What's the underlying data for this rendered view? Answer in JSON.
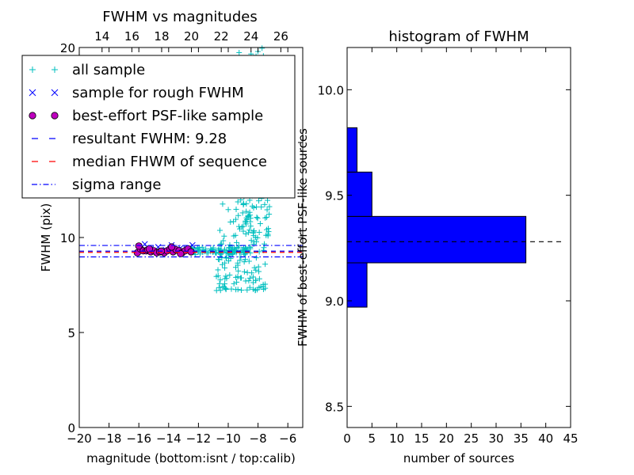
{
  "chart_data": [
    {
      "type": "scatter",
      "title": "FWHM vs magnitudes",
      "xlabel": "magnitude (bottom:isnt / top:calib)",
      "ylabel": "FWHM (pix)",
      "xlim": [
        -20,
        -5
      ],
      "ylim": [
        0,
        20
      ],
      "x_ticks": [
        "−20",
        "−18",
        "−16",
        "−14",
        "−12",
        "−10",
        "−8",
        "−6"
      ],
      "y_ticks": [
        "0",
        "5",
        "10",
        "15",
        "20"
      ],
      "top_axis": {
        "xlim": [
          12.47,
          27.47
        ],
        "ticks": [
          "14",
          "16",
          "18",
          "20",
          "22",
          "24",
          "26"
        ]
      },
      "legend_position": "upper-left",
      "legend": [
        {
          "label": "all sample",
          "marker": "+",
          "color": "#00bfbf"
        },
        {
          "label": "sample for rough FWHM",
          "marker": "x",
          "color": "#0000ff"
        },
        {
          "label": "best-effort PSF-like sample",
          "marker": "o",
          "color": "#bf00bf"
        },
        {
          "label": "resultant FWHM: 9.28",
          "linestyle": "dashed",
          "color": "#0000ff"
        },
        {
          "label": "median FHWM of sequence",
          "linestyle": "dashed",
          "color": "#ff0000"
        },
        {
          "label": "sigma range",
          "linestyle": "dashdot",
          "color": "#0000ff"
        }
      ],
      "hlines": {
        "resultant": 9.28,
        "median": 9.22,
        "sigma_low": 8.98,
        "sigma_high": 9.58
      },
      "series": [
        {
          "name": "best-effort PSF-like sample",
          "x": [
            -16.1,
            -15.9,
            -15.7,
            -15.5,
            -15.4,
            -15.2,
            -15.0,
            -14.8,
            -14.6,
            -14.3,
            -14.1,
            -13.9,
            -13.7,
            -13.5,
            -13.3,
            -13.1,
            -12.9,
            -12.7,
            -12.5,
            -16.0,
            -15.3,
            -14.5,
            -13.8,
            -13.2
          ],
          "y": [
            9.2,
            9.4,
            9.3,
            9.3,
            9.35,
            9.25,
            9.3,
            9.2,
            9.25,
            9.2,
            9.3,
            9.4,
            9.25,
            9.35,
            9.3,
            9.2,
            9.3,
            9.4,
            9.25,
            9.55,
            9.4,
            9.28,
            9.5,
            9.15
          ]
        },
        {
          "name": "sample for rough FWHM",
          "x": [
            -16.0,
            -15.6,
            -15.2,
            -14.7,
            -14.2,
            -13.8,
            -13.2,
            -12.8,
            -12.4
          ],
          "y": [
            9.45,
            9.65,
            9.4,
            9.5,
            9.35,
            9.6,
            9.45,
            9.4,
            9.6
          ]
        }
      ]
    },
    {
      "type": "histogram",
      "orientation": "horizontal",
      "title": "histogram of FWHM",
      "xlabel": "number of sources",
      "ylabel": "FWHM of best-effort PSF-like sources",
      "xlim": [
        0,
        45
      ],
      "ylim": [
        8.4,
        10.2
      ],
      "x_ticks": [
        "0",
        "5",
        "10",
        "15",
        "20",
        "25",
        "30",
        "35",
        "40",
        "45"
      ],
      "y_ticks": [
        "8.5",
        "9.0",
        "9.5",
        "10.0"
      ],
      "bars": [
        {
          "y0": 8.97,
          "y1": 9.18,
          "count": 4
        },
        {
          "y0": 9.18,
          "y1": 9.4,
          "count": 36
        },
        {
          "y0": 9.4,
          "y1": 9.61,
          "count": 5
        },
        {
          "y0": 9.61,
          "y1": 9.82,
          "count": 2
        }
      ],
      "bar_color": "#0000ff",
      "reference_line": 9.28
    }
  ]
}
